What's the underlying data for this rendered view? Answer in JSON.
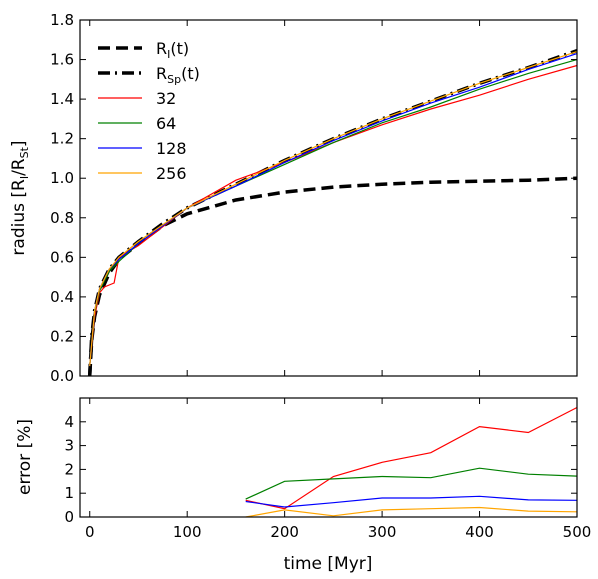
{
  "chart_data": [
    {
      "type": "line",
      "xlabel": "time [Myr]",
      "ylabel": {
        "text": "radius [R",
        "sub1": "I",
        "mid": "/R",
        "sub2": "St",
        "end": "]"
      },
      "xlim": [
        -10,
        500
      ],
      "ylim": [
        0,
        1.8
      ],
      "xticks": [
        "0",
        "100",
        "200",
        "300",
        "400",
        "500"
      ],
      "yticks": [
        "0.0",
        "0.2",
        "0.4",
        "0.6",
        "0.8",
        "1.0",
        "1.2",
        "1.4",
        "1.6",
        "1.8"
      ],
      "grid": false,
      "legend": "upper-left",
      "series": [
        {
          "name": {
            "main": "R",
            "sub": "I",
            "suffix": "(t)"
          },
          "style": "dashed",
          "color": "#000000",
          "x": [
            0,
            2,
            5,
            10,
            20,
            30,
            50,
            75,
            100,
            150,
            200,
            250,
            300,
            350,
            400,
            450,
            500
          ],
          "y": [
            0,
            0.18,
            0.3,
            0.41,
            0.52,
            0.59,
            0.67,
            0.76,
            0.82,
            0.89,
            0.93,
            0.955,
            0.97,
            0.98,
            0.985,
            0.99,
            1.0
          ]
        },
        {
          "name": {
            "main": "R",
            "sub": "Sp",
            "suffix": "(t)"
          },
          "style": "dashdot",
          "color": "#000000",
          "x": [
            0,
            2,
            5,
            10,
            20,
            30,
            50,
            75,
            100,
            150,
            200,
            250,
            300,
            350,
            400,
            450,
            500
          ],
          "y": [
            0,
            0.2,
            0.33,
            0.44,
            0.54,
            0.6,
            0.68,
            0.77,
            0.85,
            0.97,
            1.09,
            1.2,
            1.3,
            1.39,
            1.48,
            1.56,
            1.645
          ]
        },
        {
          "name": {
            "main": "32",
            "sub": "",
            "suffix": ""
          },
          "style": "solid",
          "color": "#ff0000",
          "x": [
            0,
            5,
            10,
            15,
            20,
            25,
            30,
            50,
            100,
            150,
            200,
            250,
            300,
            350,
            400,
            450,
            500
          ],
          "y": [
            0.05,
            0.3,
            0.42,
            0.45,
            0.46,
            0.47,
            0.6,
            0.66,
            0.85,
            0.99,
            1.08,
            1.18,
            1.27,
            1.35,
            1.42,
            1.5,
            1.57
          ]
        },
        {
          "name": {
            "main": "64",
            "sub": "",
            "suffix": ""
          },
          "style": "solid",
          "color": "#008000",
          "x": [
            0,
            5,
            10,
            20,
            30,
            50,
            100,
            150,
            200,
            250,
            300,
            350,
            400,
            450,
            500
          ],
          "y": [
            0.05,
            0.32,
            0.43,
            0.53,
            0.58,
            0.67,
            0.85,
            0.96,
            1.07,
            1.18,
            1.28,
            1.36,
            1.45,
            1.53,
            1.6
          ]
        },
        {
          "name": {
            "main": "128",
            "sub": "",
            "suffix": ""
          },
          "style": "solid",
          "color": "#0000ff",
          "x": [
            0,
            5,
            10,
            20,
            30,
            50,
            100,
            150,
            200,
            250,
            300,
            350,
            400,
            450,
            500
          ],
          "y": [
            0.05,
            0.33,
            0.44,
            0.54,
            0.59,
            0.67,
            0.85,
            0.96,
            1.08,
            1.19,
            1.29,
            1.38,
            1.46,
            1.55,
            1.63
          ]
        },
        {
          "name": {
            "main": "256",
            "sub": "",
            "suffix": ""
          },
          "style": "solid",
          "color": "#ffa500",
          "x": [
            0,
            5,
            10,
            20,
            30,
            50,
            100,
            150,
            200,
            250,
            300,
            350,
            400,
            450,
            500
          ],
          "y": [
            0.05,
            0.33,
            0.44,
            0.54,
            0.6,
            0.68,
            0.85,
            0.97,
            1.09,
            1.2,
            1.3,
            1.39,
            1.48,
            1.56,
            1.64
          ]
        }
      ]
    },
    {
      "type": "line",
      "xlabel": "time [Myr]",
      "ylabel": {
        "text": "error [%]"
      },
      "xlim": [
        -10,
        500
      ],
      "ylim": [
        0,
        5
      ],
      "xticks": [
        "0",
        "100",
        "200",
        "300",
        "400",
        "500"
      ],
      "yticks": [
        "0",
        "1",
        "2",
        "3",
        "4"
      ],
      "grid": false,
      "series": [
        {
          "name": "32",
          "color": "#ff0000",
          "x": [
            160,
            200,
            250,
            300,
            350,
            400,
            450,
            500
          ],
          "y": [
            0.7,
            0.35,
            1.7,
            2.3,
            2.7,
            3.8,
            3.55,
            4.6
          ]
        },
        {
          "name": "64",
          "color": "#008000",
          "x": [
            160,
            200,
            250,
            300,
            350,
            400,
            450,
            500
          ],
          "y": [
            0.75,
            1.5,
            1.6,
            1.7,
            1.65,
            2.05,
            1.8,
            1.72
          ]
        },
        {
          "name": "128",
          "color": "#0000ff",
          "x": [
            160,
            200,
            250,
            300,
            350,
            400,
            450,
            500
          ],
          "y": [
            0.65,
            0.42,
            0.6,
            0.8,
            0.8,
            0.87,
            0.72,
            0.7
          ]
        },
        {
          "name": "256",
          "color": "#ffa500",
          "x": [
            160,
            200,
            250,
            300,
            350,
            400,
            450,
            500
          ],
          "y": [
            0.0,
            0.3,
            0.05,
            0.3,
            0.35,
            0.4,
            0.25,
            0.22
          ]
        }
      ]
    }
  ]
}
